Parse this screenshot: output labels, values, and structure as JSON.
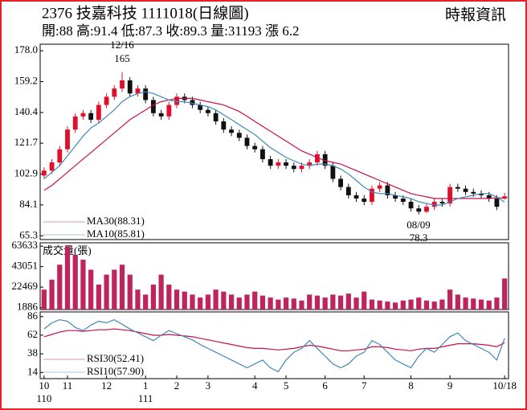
{
  "header": {
    "title": "2376  技嘉科技 1111018(日線圖)",
    "source": "時報資訊",
    "summary": "開:88 高:91.4 低:87.3 收:89.3 量:31193 漲 6.2"
  },
  "chart_data": [
    {
      "type": "candlestick",
      "categories": [
        "10",
        null,
        null,
        "11",
        null,
        null,
        null,
        null,
        "12",
        null,
        null,
        null,
        null,
        "1",
        null,
        null,
        null,
        "2",
        null,
        null,
        null,
        "3",
        null,
        null,
        null,
        null,
        null,
        "4",
        null,
        null,
        null,
        "5",
        null,
        null,
        null,
        null,
        "6",
        null,
        null,
        null,
        null,
        "7",
        null,
        null,
        null,
        null,
        null,
        "8",
        null,
        null,
        null,
        null,
        "9",
        null,
        null,
        null,
        null,
        null,
        null,
        "10/18"
      ],
      "year_labels": [
        "110",
        null,
        null,
        null,
        null,
        null,
        null,
        null,
        null,
        null,
        null,
        null,
        null,
        "111",
        null,
        null,
        null,
        null,
        null,
        null,
        null,
        null,
        null,
        null,
        null,
        null,
        null,
        null,
        null,
        null,
        null,
        null,
        null,
        null,
        null,
        null,
        null,
        null,
        null,
        null,
        null,
        null,
        null,
        null,
        null,
        null,
        null,
        null,
        null,
        null,
        null,
        null,
        null,
        null,
        null,
        null,
        null,
        null,
        null,
        null
      ],
      "open": [
        102,
        105,
        110,
        118,
        130,
        138,
        140,
        136,
        145,
        150,
        155,
        160,
        152,
        155,
        148,
        140,
        138,
        145,
        150,
        148,
        145,
        142,
        140,
        135,
        130,
        128,
        125,
        120,
        118,
        112,
        108,
        110,
        108,
        106,
        108,
        110,
        115,
        108,
        100,
        95,
        90,
        88,
        86,
        94,
        96,
        90,
        88,
        86,
        82,
        80,
        83,
        86,
        85,
        95,
        94,
        92,
        91,
        90,
        88,
        88
      ],
      "high": [
        107,
        112,
        120,
        132,
        140,
        142,
        142,
        147,
        152,
        157,
        165,
        162,
        157,
        157,
        150,
        142,
        147,
        152,
        152,
        150,
        147,
        144,
        142,
        137,
        132,
        130,
        127,
        122,
        120,
        114,
        112,
        112,
        110,
        110,
        112,
        117,
        117,
        110,
        102,
        97,
        92,
        90,
        96,
        98,
        98,
        92,
        90,
        88,
        84,
        85,
        88,
        88,
        97,
        97,
        96,
        94,
        93,
        92,
        90,
        91.4
      ],
      "low": [
        100,
        103,
        108,
        116,
        128,
        136,
        134,
        134,
        143,
        148,
        153,
        150,
        150,
        146,
        138,
        136,
        136,
        143,
        146,
        143,
        140,
        138,
        133,
        128,
        126,
        123,
        118,
        116,
        110,
        106,
        106,
        106,
        104,
        104,
        106,
        108,
        106,
        98,
        93,
        88,
        86,
        84,
        84,
        92,
        88,
        86,
        84,
        80,
        78.3,
        79,
        81,
        83,
        83,
        92,
        90,
        89,
        88,
        86,
        81,
        87.3
      ],
      "close": [
        105,
        110,
        118,
        130,
        138,
        140,
        136,
        145,
        150,
        155,
        160,
        152,
        155,
        148,
        140,
        138,
        145,
        150,
        148,
        145,
        142,
        140,
        135,
        130,
        128,
        125,
        120,
        118,
        112,
        108,
        110,
        108,
        106,
        108,
        110,
        115,
        108,
        100,
        95,
        90,
        88,
        86,
        94,
        96,
        90,
        88,
        86,
        82,
        80,
        83,
        86,
        85,
        95,
        94,
        92,
        91,
        90,
        88,
        83,
        89.3
      ],
      "up_color": "#e0102c",
      "down_color": "#111111",
      "series": [
        {
          "name": "MA30(88.31)",
          "color": "#c8104a",
          "values": [
            93,
            96,
            100,
            104,
            108,
            112,
            116,
            120,
            124,
            128,
            132,
            136,
            139,
            142,
            145,
            147,
            148,
            149,
            149,
            149,
            148,
            147,
            146,
            145,
            143,
            141,
            138,
            135,
            132,
            129,
            126,
            123,
            120,
            117,
            115,
            113,
            111,
            110,
            109,
            107,
            105,
            103,
            101,
            99,
            97,
            95,
            93,
            91,
            90,
            89,
            88,
            88,
            88,
            88,
            88,
            88,
            88,
            88,
            88.5,
            88.31
          ]
        },
        {
          "name": "MA10(85.81)",
          "color": "#3f88b8",
          "values": [
            100,
            104,
            108,
            114,
            120,
            126,
            131,
            134,
            138,
            142,
            147,
            150,
            152,
            153,
            152,
            150,
            148,
            147,
            147,
            146,
            145,
            144,
            142,
            139,
            136,
            133,
            130,
            127,
            123,
            119,
            116,
            113,
            111,
            109,
            108,
            109,
            109,
            108,
            106,
            103,
            99,
            95,
            92,
            91,
            91,
            90,
            89,
            88,
            86,
            85,
            84,
            84,
            86,
            88,
            89,
            90,
            91,
            91,
            89,
            85.81
          ]
        }
      ],
      "annotations": [
        "12/16",
        "165",
        "08/09",
        "78.3"
      ],
      "ylim": [
        63,
        182
      ],
      "yticks": [
        65.3,
        84.1,
        102.9,
        121.7,
        140.4,
        159.2,
        {
          "value": 178,
          "label": "178.0"
        }
      ]
    },
    {
      "type": "bar",
      "label": "成交量(張)",
      "color": "#c0245c",
      "values": [
        20000,
        30000,
        45000,
        63633,
        55000,
        50000,
        40000,
        25000,
        35000,
        40000,
        45000,
        35000,
        20000,
        15000,
        25000,
        35000,
        25000,
        20000,
        18000,
        15000,
        12000,
        15000,
        20000,
        18000,
        15000,
        12000,
        15000,
        18000,
        14000,
        12000,
        10000,
        12000,
        11000,
        9000,
        15000,
        14000,
        12000,
        15000,
        14000,
        16000,
        12000,
        18000,
        10000,
        9000,
        8000,
        7000,
        9000,
        10000,
        12000,
        9000,
        8000,
        10000,
        20000,
        15000,
        12000,
        11000,
        10000,
        9000,
        12000,
        31193
      ],
      "ylim": [
        0,
        67000
      ],
      "yticks": [
        1886,
        22469,
        43051,
        63633
      ]
    },
    {
      "type": "line",
      "series": [
        {
          "name": "RSI30(52.41)",
          "color": "#c8104a",
          "values": [
            60,
            63,
            66,
            68,
            68,
            67,
            68,
            69,
            69,
            70,
            69,
            68,
            66,
            64,
            62,
            62,
            63,
            62,
            61,
            60,
            58,
            56,
            54,
            52,
            50,
            48,
            46,
            45,
            45,
            44,
            43,
            44,
            45,
            47,
            49,
            48,
            46,
            44,
            42,
            42,
            43,
            44,
            47,
            47,
            46,
            44,
            43,
            42,
            44,
            45,
            45,
            47,
            49,
            51,
            51,
            51,
            50,
            49,
            47,
            52.41
          ]
        },
        {
          "name": "RSI10(57.90)",
          "color": "#3f88b8",
          "values": [
            70,
            78,
            82,
            80,
            72,
            68,
            75,
            80,
            78,
            82,
            76,
            70,
            65,
            60,
            55,
            62,
            68,
            64,
            60,
            56,
            50,
            45,
            40,
            35,
            30,
            25,
            20,
            25,
            30,
            20,
            15,
            30,
            40,
            45,
            55,
            45,
            35,
            25,
            20,
            25,
            35,
            40,
            55,
            50,
            40,
            30,
            25,
            20,
            35,
            45,
            40,
            50,
            60,
            65,
            55,
            50,
            45,
            40,
            30,
            57.9
          ]
        }
      ],
      "ylim": [
        6,
        92
      ],
      "yticks": [
        14,
        38,
        62,
        86
      ]
    }
  ]
}
